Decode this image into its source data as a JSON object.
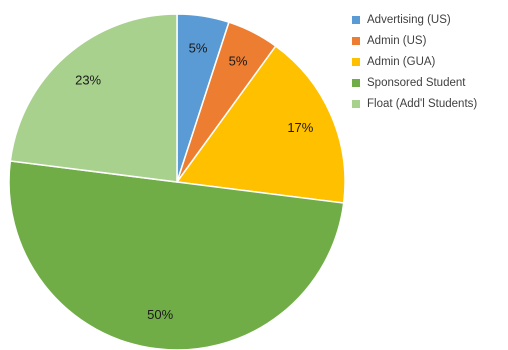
{
  "chart_data": {
    "type": "pie",
    "title": "",
    "legend_position": "right",
    "slices": [
      {
        "name": "Advertising (US)",
        "value": 5,
        "label": "5%",
        "color": "#5b9bd5"
      },
      {
        "name": "Admin (US)",
        "value": 5,
        "label": "5%",
        "color": "#ed7d31"
      },
      {
        "name": "Admin (GUA)",
        "value": 17,
        "label": "17%",
        "color": "#ffc000"
      },
      {
        "name": "Sponsored Student",
        "value": 50,
        "label": "50%",
        "color": "#70ad47"
      },
      {
        "name": "Float (Add'l Students)",
        "value": 23,
        "label": "23%",
        "color": "#a9d18e"
      }
    ]
  }
}
